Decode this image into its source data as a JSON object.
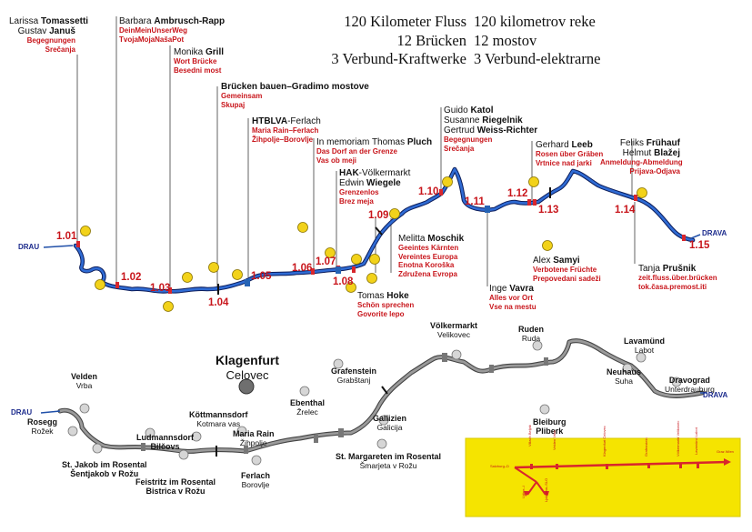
{
  "stats": {
    "de": [
      "120 Kilometer Fluss",
      "12 Brücken",
      "3 Verbund-Kraftwerke"
    ],
    "sl": [
      "120 kilometrov reke",
      "12 mostov",
      "3 Verbund-elektrarne"
    ]
  },
  "river_label": "DRAU",
  "river_label_right": "DRAVA",
  "bridges": [
    "1.01",
    "1.02",
    "1.03",
    "1.04",
    "1.05",
    "1.06",
    "1.07",
    "1.08",
    "1.09",
    "1.10",
    "1.11",
    "1.12",
    "1.13",
    "1.14",
    "1.15"
  ],
  "annotations": [
    {
      "name_pre": "Larissa ",
      "name_bold": "Tomassetti",
      "name2_pre": "Gustav ",
      "name2_bold": "Januš",
      "red": [
        "Begegnungen",
        "Srečanja"
      ]
    },
    {
      "name_pre": "Barbara ",
      "name_bold": "Ambrusch-Rapp",
      "red": [
        "DeinMeinUnserWeg",
        "TvojaMojaNašaPot"
      ]
    },
    {
      "name_pre": "Monika ",
      "name_bold": "Grill",
      "red": [
        "Wort Brücke",
        "Besedni most"
      ]
    },
    {
      "name_pre": "",
      "name_bold": "Brücken bauen–Gradimo mostove",
      "red": [
        "Gemeinsam",
        "Skupaj"
      ]
    },
    {
      "name_pre": "",
      "name_bold": "HTBLVA",
      "name_post": "-Ferlach",
      "red": [
        "Maria Rain–Ferlach",
        "Žihpolje–Borovlje"
      ]
    },
    {
      "name_pre": "In memoriam Thomas ",
      "name_bold": "Pluch",
      "red": [
        "Das Dorf an der Grenze",
        "Vas ob meji"
      ]
    },
    {
      "name_pre": "",
      "name_bold": "HAK",
      "name_post": "-Völkermarkt",
      "name2_pre": "Edwin ",
      "name2_bold": "Wiegele",
      "red": [
        "Grenzenlos",
        "Brez meja"
      ]
    },
    {
      "name_pre": "Guido ",
      "name_bold": "Katol",
      "name2_pre": "Susanne ",
      "name2_bold": "Riegelnik",
      "name3_pre": "Gertrud ",
      "name3_bold": "Weiss-Richter",
      "red": [
        "Begegnungen",
        "Srečanja"
      ]
    },
    {
      "name_pre": "Gerhard ",
      "name_bold": "Leeb",
      "red": [
        "Rosen über Gräben",
        "Vrtnice nad jarki"
      ]
    },
    {
      "name_pre": "Feliks ",
      "name_bold": "Frühauf",
      "name2_pre": "Helmut ",
      "name2_bold": "Blažej",
      "red": [
        "Anmeldung-Abmeldung",
        "Prijava-Odjava"
      ]
    },
    {
      "name_pre": "Melitta ",
      "name_bold": "Moschik",
      "red": [
        "Geeintes Kärnten",
        "Vereintes Europa",
        "Enotna Koroška",
        "Združena Evropa"
      ]
    },
    {
      "name_pre": "Tomas ",
      "name_bold": "Hoke",
      "red": [
        "Schön sprechen",
        "Govorite lepo"
      ]
    },
    {
      "name_pre": "Inge ",
      "name_bold": "Vavra",
      "red": [
        "Alles vor Ort",
        "Vse na mestu"
      ]
    },
    {
      "name_pre": "Alex ",
      "name_bold": "Samyi",
      "red": [
        "Verbotene Früchte",
        "Prepovedani sadeži"
      ]
    },
    {
      "name_pre": "Tanja ",
      "name_bold": "Prušnik",
      "red": [
        "zeit.fluss.über.brücken",
        "tok.časa.premost.iti"
      ]
    }
  ],
  "towns": [
    {
      "de": "Velden",
      "sl": "Vrba"
    },
    {
      "de": "Rosegg",
      "sl": "Rožek"
    },
    {
      "de": "St. Jakob im Rosental",
      "sl": "Šentjakob v Rožu"
    },
    {
      "de": "Ludmannsdorf",
      "sl": "Bilčovs"
    },
    {
      "de": "Feistritz im Rosental",
      "sl": "Bistrica v Rožu"
    },
    {
      "de": "Köttmannsdorf",
      "sl": "Kotmara vas"
    },
    {
      "de": "Maria Rain",
      "sl": "Žihpolje"
    },
    {
      "de": "Ferlach",
      "sl": "Borovlje"
    },
    {
      "de": "Ebenthal",
      "sl": "Žrelec"
    },
    {
      "de": "Grafenstein",
      "sl": "Grabštanj"
    },
    {
      "de": "Gallizien",
      "sl": "Galicija"
    },
    {
      "de": "St. Margareten im Rosental",
      "sl": "Šmarjeta v Rožu"
    },
    {
      "de": "Völkermarkt",
      "sl": "Velikovec"
    },
    {
      "de": "Ruden",
      "sl": "Ruda"
    },
    {
      "de": "Bleiburg",
      "sl": "Pliberk"
    },
    {
      "de": "Neuhaus",
      "sl": "Suha"
    },
    {
      "de": "Lavamünd",
      "sl": "Labot"
    },
    {
      "de": "Dravograd",
      "sl": "Unterdrauburg"
    }
  ],
  "capital": {
    "de": "Klagenfurt",
    "sl": "Celovec"
  },
  "bottom_drau": "DRAU",
  "bottom_drava": "DRAVA",
  "inset": {
    "labels": [
      "Salzburg–D",
      "Villach Beljak",
      "Velden Vrba",
      "Klagenfurt Celovec",
      "Grafenstein",
      "Völkermarkt Velikovec",
      "Lavamünd Labot",
      "Graz Wien",
      "Udine–I",
      "Ljubljana–SLO"
    ]
  },
  "colors": {
    "river": "#1f4fa8",
    "bridge": "#d8262c",
    "sun": "#f2d21a",
    "road": "#7d7d7d",
    "inset_bg": "#f5e400",
    "accent_red": "#c8151b"
  }
}
